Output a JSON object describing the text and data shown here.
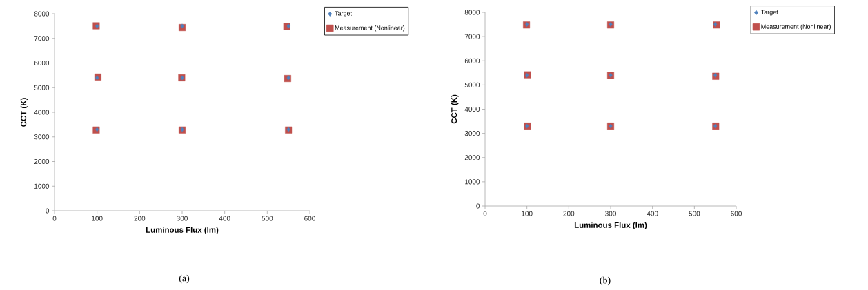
{
  "chart_data": [
    {
      "type": "scatter",
      "xlabel": "Luminous Flux (lm)",
      "ylabel": "CCT (K)",
      "annotations": [
        "(a)"
      ],
      "xlim": [
        0,
        600
      ],
      "ylim": [
        0,
        8000
      ],
      "xticks": [
        0,
        100,
        200,
        300,
        400,
        500,
        600
      ],
      "yticks": [
        0,
        1000,
        2000,
        3000,
        4000,
        5000,
        6000,
        7000,
        8000
      ],
      "grid": false,
      "legend": "top right",
      "series": [
        {
          "name": "Target",
          "color": "#4f81bd",
          "marker": "diamond",
          "x": [
            100,
            300,
            550,
            100,
            300,
            550,
            100,
            300,
            550
          ],
          "values": [
            7500,
            7500,
            7500,
            5400,
            5400,
            5400,
            3300,
            3300,
            3300
          ]
        },
        {
          "name": "Measurement (Nonlinear)",
          "color": "#c0504d",
          "marker": "square",
          "x": [
            98,
            300,
            546,
            102,
            299,
            548,
            98,
            300,
            550
          ],
          "values": [
            7510,
            7440,
            7480,
            5430,
            5400,
            5370,
            3280,
            3280,
            3280
          ]
        }
      ]
    },
    {
      "type": "scatter",
      "xlabel": "Luminous Flux (lm)",
      "ylabel": "CCT (K)",
      "annotations": [
        "(b)"
      ],
      "xlim": [
        0,
        600
      ],
      "ylim": [
        0,
        8000
      ],
      "xticks": [
        0,
        100,
        200,
        300,
        400,
        500,
        600
      ],
      "yticks": [
        0,
        1000,
        2000,
        3000,
        4000,
        5000,
        6000,
        7000,
        8000
      ],
      "grid": false,
      "legend": "top right",
      "series": [
        {
          "name": "Target",
          "color": "#4f81bd",
          "marker": "diamond",
          "x": [
            100,
            300,
            550,
            100,
            300,
            550,
            100,
            300,
            550
          ],
          "values": [
            7500,
            7500,
            7500,
            5400,
            5400,
            5400,
            3300,
            3300,
            3300
          ]
        },
        {
          "name": "Measurement (Nonlinear)",
          "color": "#c0504d",
          "marker": "square",
          "x": [
            99,
            300,
            553,
            101,
            300,
            551,
            101,
            300,
            551
          ],
          "values": [
            7480,
            7480,
            7480,
            5420,
            5390,
            5360,
            3300,
            3300,
            3300
          ]
        }
      ]
    }
  ]
}
